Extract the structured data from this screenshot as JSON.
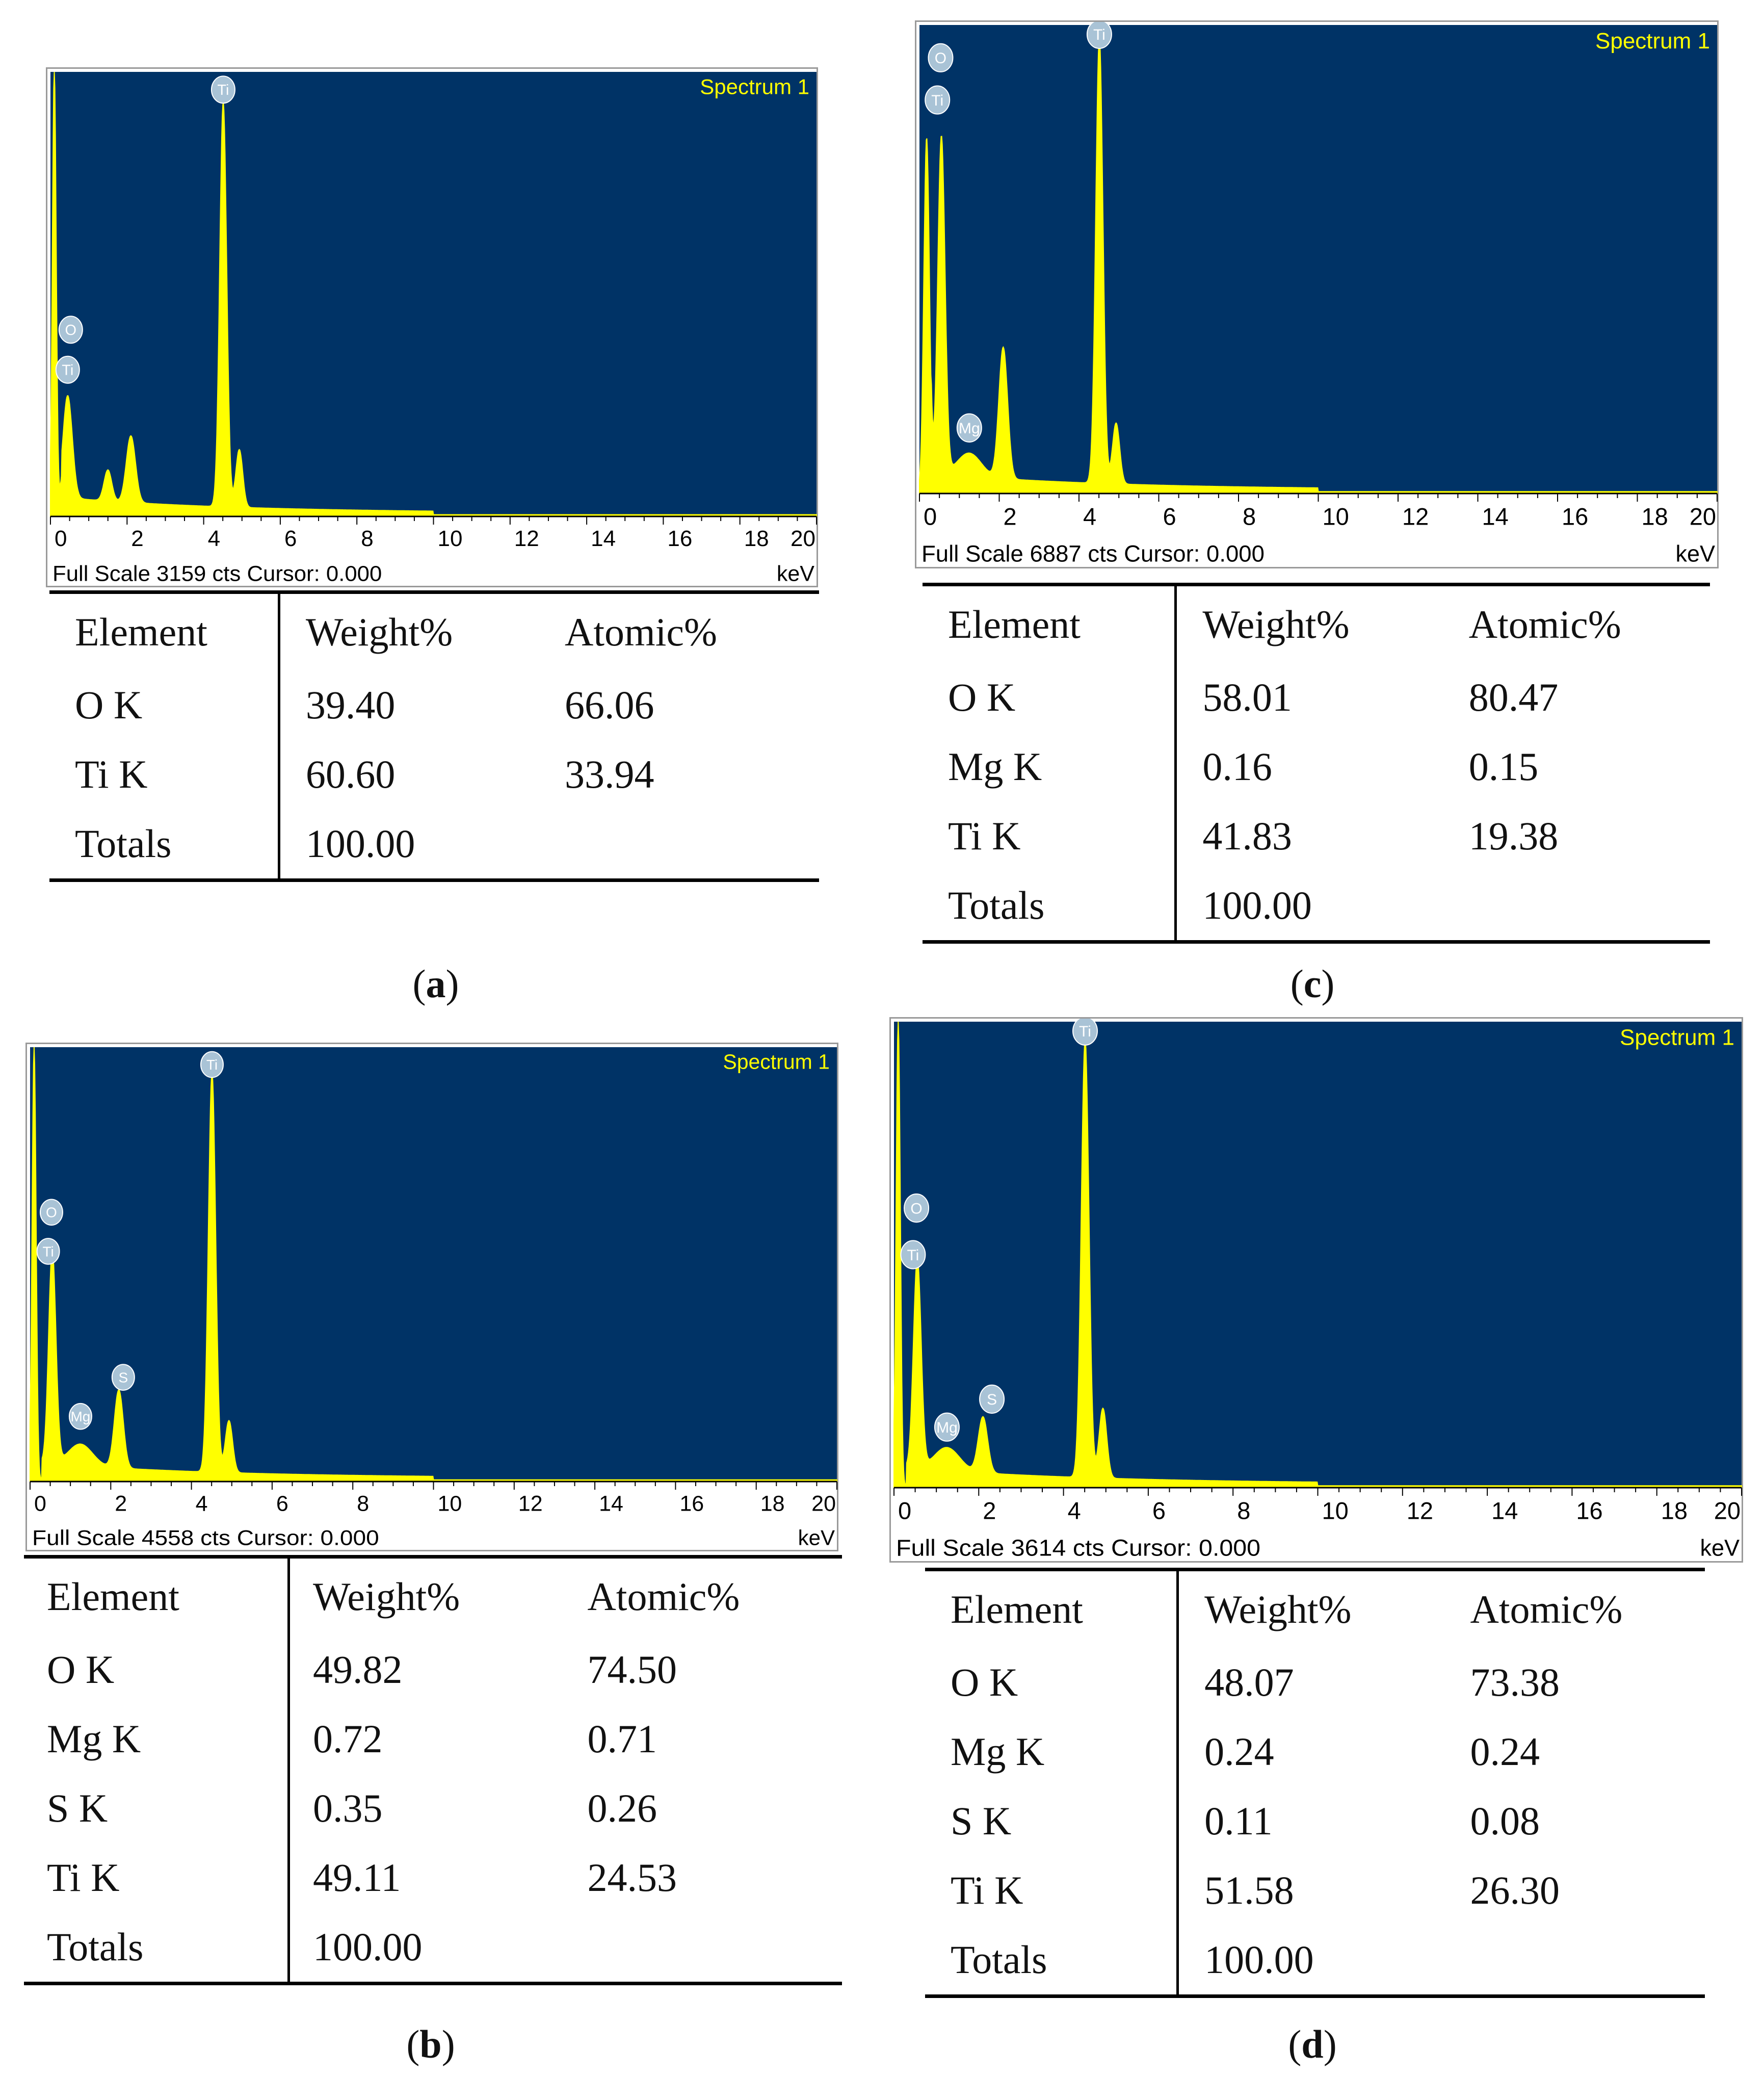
{
  "colors": {
    "plot_bg": "#003366",
    "spectrum": "#ffff00",
    "label": "#a9c3d6",
    "axis_text": "#000000"
  },
  "panels": [
    {
      "caption": "a",
      "chart_data": {
        "type": "line",
        "title": "Spectrum 1",
        "xlabel": "keV",
        "x_ticks": [
          "0",
          "2",
          "4",
          "6",
          "8",
          "10",
          "12",
          "14",
          "16",
          "18",
          "20"
        ],
        "xlim": [
          0,
          20
        ],
        "footer": "Full Scale 3159 cts Cursor: 0.000",
        "peak_labels": [
          {
            "label": "O",
            "energy": 0.53,
            "height": 0.42
          },
          {
            "label": "Ti",
            "energy": 0.45,
            "height": 0.33
          },
          {
            "label": "Ti",
            "energy": 4.51,
            "height": 0.96
          }
        ],
        "peaks": [
          {
            "energy": 0.1,
            "height": 1.0,
            "width": 0.05
          },
          {
            "energy": 0.45,
            "height": 0.23,
            "width": 0.12
          },
          {
            "energy": 1.5,
            "height": 0.07,
            "width": 0.1
          },
          {
            "energy": 2.1,
            "height": 0.15,
            "width": 0.12
          },
          {
            "energy": 4.51,
            "height": 0.91,
            "width": 0.09
          },
          {
            "energy": 4.93,
            "height": 0.13,
            "width": 0.09
          }
        ]
      },
      "table": {
        "headers": [
          "Element",
          "Weight%",
          "Atomic%"
        ],
        "rows": [
          [
            "O K",
            "39.40",
            "66.06"
          ],
          [
            "Ti K",
            "60.60",
            "33.94"
          ],
          [
            "Totals",
            "100.00",
            ""
          ]
        ]
      }
    },
    {
      "caption": "c",
      "chart_data": {
        "type": "line",
        "title": "Spectrum 1",
        "xlabel": "keV",
        "x_ticks": [
          "0",
          "2",
          "4",
          "6",
          "8",
          "10",
          "12",
          "14",
          "16",
          "18",
          "20"
        ],
        "xlim": [
          0,
          20
        ],
        "footer": "Full Scale 6887 cts Cursor: 0.000",
        "peak_labels": [
          {
            "label": "O",
            "energy": 0.53,
            "height": 0.93
          },
          {
            "label": "Ti",
            "energy": 0.45,
            "height": 0.84
          },
          {
            "label": "Mg",
            "energy": 1.25,
            "height": 0.14
          },
          {
            "label": "Ti",
            "energy": 4.51,
            "height": 0.98
          }
        ],
        "peaks": [
          {
            "energy": 0.18,
            "height": 0.76,
            "width": 0.07
          },
          {
            "energy": 0.55,
            "height": 0.72,
            "width": 0.09
          },
          {
            "energy": 1.25,
            "height": 0.05,
            "width": 0.3
          },
          {
            "energy": 2.1,
            "height": 0.28,
            "width": 0.11
          },
          {
            "energy": 4.51,
            "height": 0.95,
            "width": 0.09
          },
          {
            "energy": 4.93,
            "height": 0.13,
            "width": 0.09
          }
        ]
      },
      "table": {
        "headers": [
          "Element",
          "Weight%",
          "Atomic%"
        ],
        "rows": [
          [
            "O K",
            "58.01",
            "80.47"
          ],
          [
            "Mg K",
            "0.16",
            "0.15"
          ],
          [
            "Ti K",
            "41.83",
            "19.38"
          ],
          [
            "Totals",
            "100.00",
            ""
          ]
        ]
      }
    },
    {
      "caption": "b",
      "chart_data": {
        "type": "line",
        "title": "Spectrum 1",
        "xlabel": "keV",
        "x_ticks": [
          "0",
          "2",
          "4",
          "6",
          "8",
          "10",
          "12",
          "14",
          "16",
          "18",
          "20"
        ],
        "xlim": [
          0,
          20
        ],
        "footer": "Full Scale 4558 cts Cursor: 0.000",
        "peak_labels": [
          {
            "label": "O",
            "energy": 0.53,
            "height": 0.62
          },
          {
            "label": "Ti",
            "energy": 0.45,
            "height": 0.53
          },
          {
            "label": "Mg",
            "energy": 1.25,
            "height": 0.15
          },
          {
            "label": "S",
            "energy": 2.31,
            "height": 0.24
          },
          {
            "label": "Ti",
            "energy": 4.51,
            "height": 0.96
          }
        ],
        "peaks": [
          {
            "energy": 0.1,
            "height": 1.0,
            "width": 0.05
          },
          {
            "energy": 0.55,
            "height": 0.49,
            "width": 0.09
          },
          {
            "energy": 1.25,
            "height": 0.05,
            "width": 0.3
          },
          {
            "energy": 2.2,
            "height": 0.18,
            "width": 0.11
          },
          {
            "energy": 4.51,
            "height": 0.92,
            "width": 0.09
          },
          {
            "energy": 4.93,
            "height": 0.12,
            "width": 0.09
          }
        ]
      },
      "table": {
        "headers": [
          "Element",
          "Weight%",
          "Atomic%"
        ],
        "rows": [
          [
            "O K",
            "49.82",
            "74.50"
          ],
          [
            "Mg K",
            "0.72",
            "0.71"
          ],
          [
            "S K",
            "0.35",
            "0.26"
          ],
          [
            "Ti K",
            "49.11",
            "24.53"
          ],
          [
            "Totals",
            "100.00",
            ""
          ]
        ]
      }
    },
    {
      "caption": "d",
      "chart_data": {
        "type": "line",
        "title": "Spectrum 1",
        "xlabel": "keV",
        "x_ticks": [
          "0",
          "2",
          "4",
          "6",
          "8",
          "10",
          "12",
          "14",
          "16",
          "18",
          "20"
        ],
        "xlim": [
          0,
          20
        ],
        "footer": "Full Scale 3614 cts Cursor: 0.000",
        "peak_labels": [
          {
            "label": "O",
            "energy": 0.53,
            "height": 0.6
          },
          {
            "label": "Ti",
            "energy": 0.45,
            "height": 0.5
          },
          {
            "label": "Mg",
            "energy": 1.25,
            "height": 0.13
          },
          {
            "label": "S",
            "energy": 2.31,
            "height": 0.19
          },
          {
            "label": "Ti",
            "energy": 4.51,
            "height": 0.98
          }
        ],
        "peaks": [
          {
            "energy": 0.1,
            "height": 1.0,
            "width": 0.05
          },
          {
            "energy": 0.55,
            "height": 0.45,
            "width": 0.09
          },
          {
            "energy": 1.25,
            "height": 0.05,
            "width": 0.3
          },
          {
            "energy": 2.1,
            "height": 0.12,
            "width": 0.11
          },
          {
            "energy": 4.51,
            "height": 0.94,
            "width": 0.09
          },
          {
            "energy": 4.93,
            "height": 0.15,
            "width": 0.09
          }
        ]
      },
      "table": {
        "headers": [
          "Element",
          "Weight%",
          "Atomic%"
        ],
        "rows": [
          [
            "O K",
            "48.07",
            "73.38"
          ],
          [
            "Mg K",
            "0.24",
            "0.24"
          ],
          [
            "S K",
            "0.11",
            "0.08"
          ],
          [
            "Ti K",
            "51.58",
            "26.30"
          ],
          [
            "Totals",
            "100.00",
            ""
          ]
        ]
      }
    }
  ]
}
